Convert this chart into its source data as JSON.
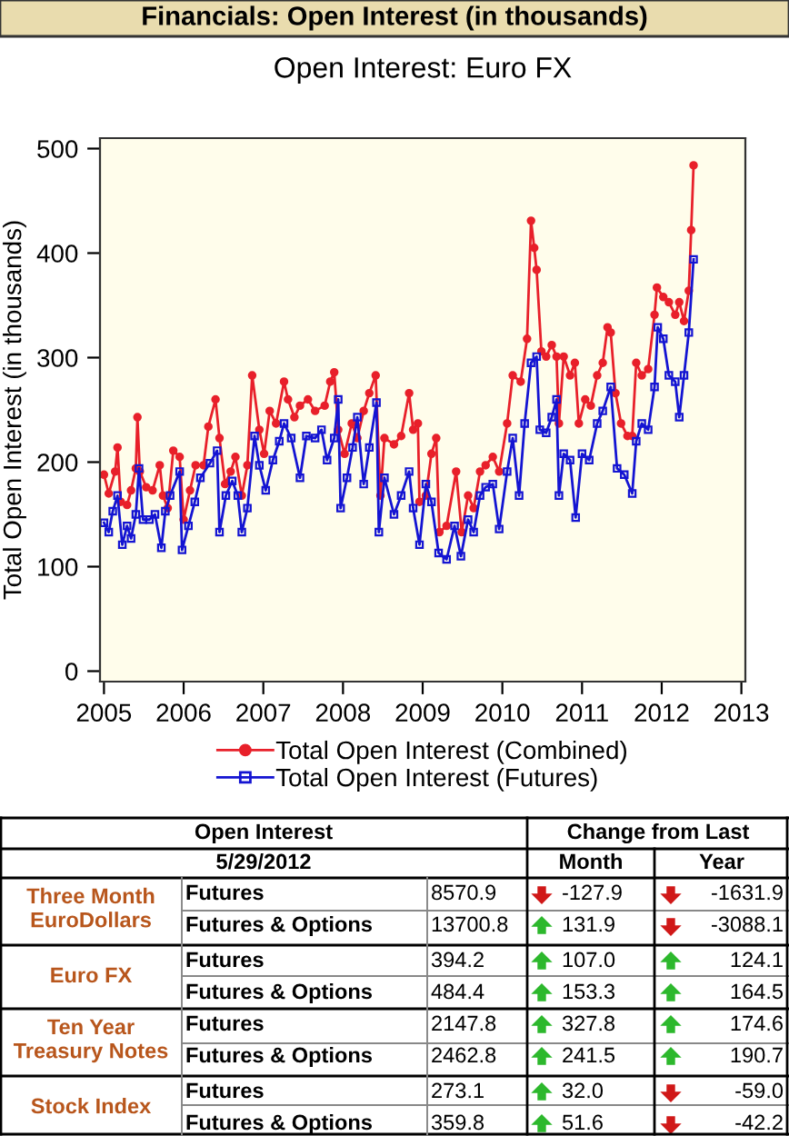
{
  "chart_data": [
    {
      "type": "line",
      "title": "Open Interest: Euro FX",
      "ylabel": "Total Open Interest (in thousands)",
      "annotations": [
        "Financials: Open Interest (in thousands)"
      ],
      "xlim": [
        2004.95,
        2013.05
      ],
      "xticks": [
        2005,
        2006,
        2007,
        2008,
        2009,
        2010,
        2011,
        2012,
        2013
      ],
      "ylim": [
        -10,
        510
      ],
      "yticks": [
        0,
        100,
        200,
        300,
        400,
        500
      ],
      "grid": false,
      "legend": "bottom",
      "marker": "circle",
      "line_style": "solid",
      "series": [
        {
          "name": "Total Open Interest (Combined)",
          "color": "#e8202a",
          "x": [
            2005.0,
            2005.06,
            2005.14,
            2005.17,
            2005.21,
            2005.29,
            2005.34,
            2005.4,
            2005.42,
            2005.45,
            2005.53,
            2005.61,
            2005.7,
            2005.74,
            2005.8,
            2005.87,
            2005.95,
            2006.0,
            2006.08,
            2006.15,
            2006.25,
            2006.31,
            2006.4,
            2006.45,
            2006.52,
            2006.59,
            2006.65,
            2006.73,
            2006.8,
            2006.86,
            2006.95,
            2007.01,
            2007.08,
            2007.16,
            2007.26,
            2007.31,
            2007.39,
            2007.46,
            2007.56,
            2007.65,
            2007.77,
            2007.84,
            2007.89,
            2007.94,
            2008.02,
            2008.11,
            2008.18,
            2008.26,
            2008.33,
            2008.41,
            2008.47,
            2008.52,
            2008.64,
            2008.73,
            2008.83,
            2008.88,
            2008.94,
            2008.96,
            2009.04,
            2009.11,
            2009.17,
            2009.21,
            2009.3,
            2009.42,
            2009.49,
            2009.57,
            2009.64,
            2009.72,
            2009.79,
            2009.88,
            2009.96,
            2010.06,
            2010.13,
            2010.23,
            2010.31,
            2010.36,
            2010.4,
            2010.43,
            2010.49,
            2010.55,
            2010.62,
            2010.68,
            2010.71,
            2010.77,
            2010.85,
            2010.91,
            2010.96,
            2011.04,
            2011.11,
            2011.19,
            2011.26,
            2011.32,
            2011.36,
            2011.42,
            2011.49,
            2011.57,
            2011.63,
            2011.68,
            2011.75,
            2011.83,
            2011.91,
            2011.94,
            2012.02,
            2012.09,
            2012.17,
            2012.22,
            2012.28,
            2012.34,
            2012.37,
            2012.4
          ],
          "values": [
            188,
            170,
            191,
            214,
            162,
            159,
            173,
            194,
            243,
            191,
            176,
            173,
            197,
            168,
            156,
            211,
            205,
            145,
            173,
            197,
            197,
            234,
            260,
            223,
            179,
            191,
            205,
            168,
            197,
            283,
            231,
            208,
            249,
            237,
            277,
            260,
            243,
            254,
            260,
            249,
            254,
            277,
            286,
            231,
            208,
            237,
            223,
            249,
            266,
            283,
            168,
            223,
            217,
            225,
            266,
            231,
            237,
            162,
            168,
            208,
            223,
            133,
            139,
            191,
            133,
            168,
            156,
            191,
            197,
            205,
            191,
            237,
            283,
            277,
            318,
            431,
            405,
            384,
            306,
            301,
            312,
            301,
            237,
            301,
            283,
            295,
            237,
            260,
            254,
            283,
            295,
            329,
            324,
            266,
            237,
            225,
            225,
            295,
            283,
            289,
            341,
            367,
            358,
            353,
            341,
            353,
            335,
            364,
            422,
            484
          ]
        },
        {
          "name": "Total Open Interest (Futures)",
          "color": "#1414d2",
          "marker": "square",
          "x": [
            2005.0,
            2005.06,
            2005.11,
            2005.17,
            2005.23,
            2005.29,
            2005.34,
            2005.4,
            2005.44,
            2005.49,
            2005.57,
            2005.64,
            2005.72,
            2005.77,
            2005.83,
            2005.95,
            2005.98,
            2006.06,
            2006.14,
            2006.21,
            2006.33,
            2006.42,
            2006.45,
            2006.53,
            2006.61,
            2006.68,
            2006.73,
            2006.8,
            2006.89,
            2006.95,
            2007.03,
            2007.12,
            2007.2,
            2007.26,
            2007.35,
            2007.46,
            2007.54,
            2007.65,
            2007.73,
            2007.8,
            2007.89,
            2007.94,
            2007.97,
            2008.05,
            2008.12,
            2008.18,
            2008.26,
            2008.33,
            2008.42,
            2008.45,
            2008.52,
            2008.64,
            2008.73,
            2008.83,
            2008.88,
            2008.96,
            2009.04,
            2009.11,
            2009.2,
            2009.3,
            2009.4,
            2009.48,
            2009.57,
            2009.64,
            2009.72,
            2009.79,
            2009.88,
            2009.96,
            2010.06,
            2010.13,
            2010.21,
            2010.28,
            2010.36,
            2010.43,
            2010.47,
            2010.55,
            2010.62,
            2010.68,
            2010.71,
            2010.77,
            2010.85,
            2010.92,
            2011.0,
            2011.09,
            2011.19,
            2011.26,
            2011.36,
            2011.44,
            2011.53,
            2011.63,
            2011.68,
            2011.75,
            2011.83,
            2011.91,
            2011.95,
            2012.02,
            2012.09,
            2012.17,
            2012.22,
            2012.28,
            2012.34,
            2012.4
          ],
          "values": [
            142,
            133,
            153,
            168,
            121,
            139,
            127,
            150,
            194,
            145,
            145,
            150,
            118,
            153,
            168,
            191,
            116,
            139,
            162,
            185,
            199,
            211,
            133,
            168,
            182,
            168,
            133,
            156,
            225,
            197,
            173,
            202,
            220,
            237,
            223,
            185,
            225,
            223,
            231,
            202,
            223,
            260,
            156,
            185,
            214,
            243,
            179,
            214,
            257,
            133,
            185,
            150,
            168,
            191,
            156,
            121,
            179,
            162,
            113,
            107,
            139,
            110,
            145,
            133,
            168,
            176,
            179,
            136,
            191,
            223,
            168,
            237,
            295,
            301,
            231,
            228,
            243,
            260,
            168,
            208,
            202,
            147,
            208,
            202,
            237,
            249,
            272,
            194,
            188,
            170,
            220,
            237,
            231,
            272,
            329,
            318,
            283,
            277,
            243,
            283,
            324,
            394
          ]
        }
      ]
    },
    {
      "type": "other",
      "annotations": [
        "Open Interest",
        "Change from Last",
        "5/29/2012",
        "Month",
        "Year",
        "Three Month\nEuroDollars",
        "Futures",
        "8570.9",
        "-127.9",
        "-1631.9",
        "Futures & Options",
        "13700.8",
        "131.9",
        "-3088.1",
        "Euro FX",
        "Futures",
        "394.2",
        "107.0",
        "124.1",
        "Futures & Options",
        "484.4",
        "153.3",
        "164.5",
        "Ten Year\nTreasury Notes",
        "Futures",
        "2147.8",
        "327.8",
        "174.6",
        "Futures & Options",
        "2462.8",
        "241.5",
        "190.7",
        "Stock Index",
        "Futures",
        "273.1",
        "32.0",
        "-59.0",
        "Futures & Options",
        "359.8",
        "51.6",
        "-42.2"
      ]
    }
  ]
}
